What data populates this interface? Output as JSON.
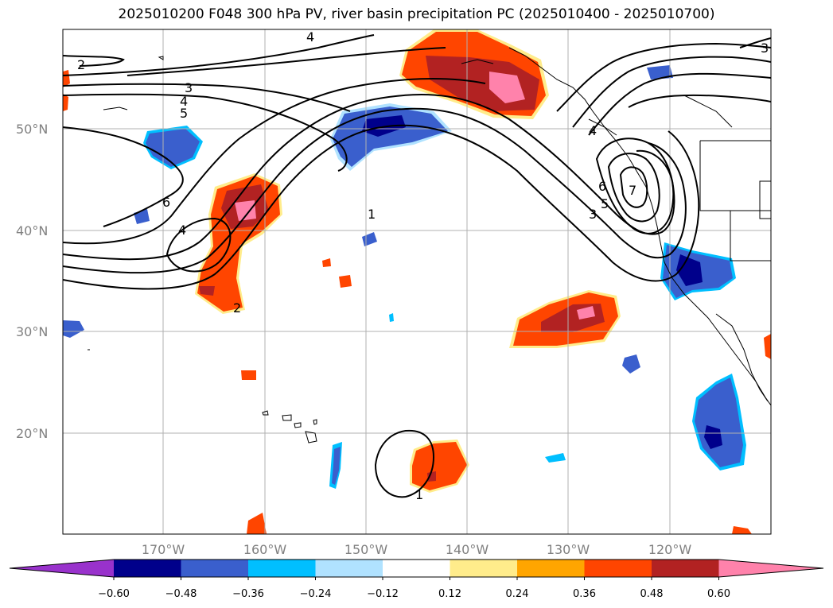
{
  "title": "2025010200 F048 300 hPa PV, river basin precipitation PC (2025010400 - 2025010700)",
  "lat_labels": [
    "50°N",
    "40°N",
    "30°N",
    "20°N"
  ],
  "lon_labels": [
    "170°W",
    "160°W",
    "150°W",
    "140°W",
    "130°W",
    "120°W"
  ],
  "colorbar": {
    "tick_labels": [
      "−0.60",
      "−0.48",
      "−0.36",
      "−0.24",
      "−0.12",
      "0.12",
      "0.24",
      "0.36",
      "0.48",
      "0.60"
    ],
    "colors": [
      "#9932cc",
      "#00008b",
      "#3a5fcd",
      "#00bfff",
      "#b0e2ff",
      "#ffffff",
      "#ffec8b",
      "#ffa500",
      "#ff4500",
      "#b22222",
      "#ff82ab"
    ]
  },
  "contour_labels": [
    "1",
    "2",
    "3",
    "4",
    "5",
    "6",
    "7"
  ]
}
